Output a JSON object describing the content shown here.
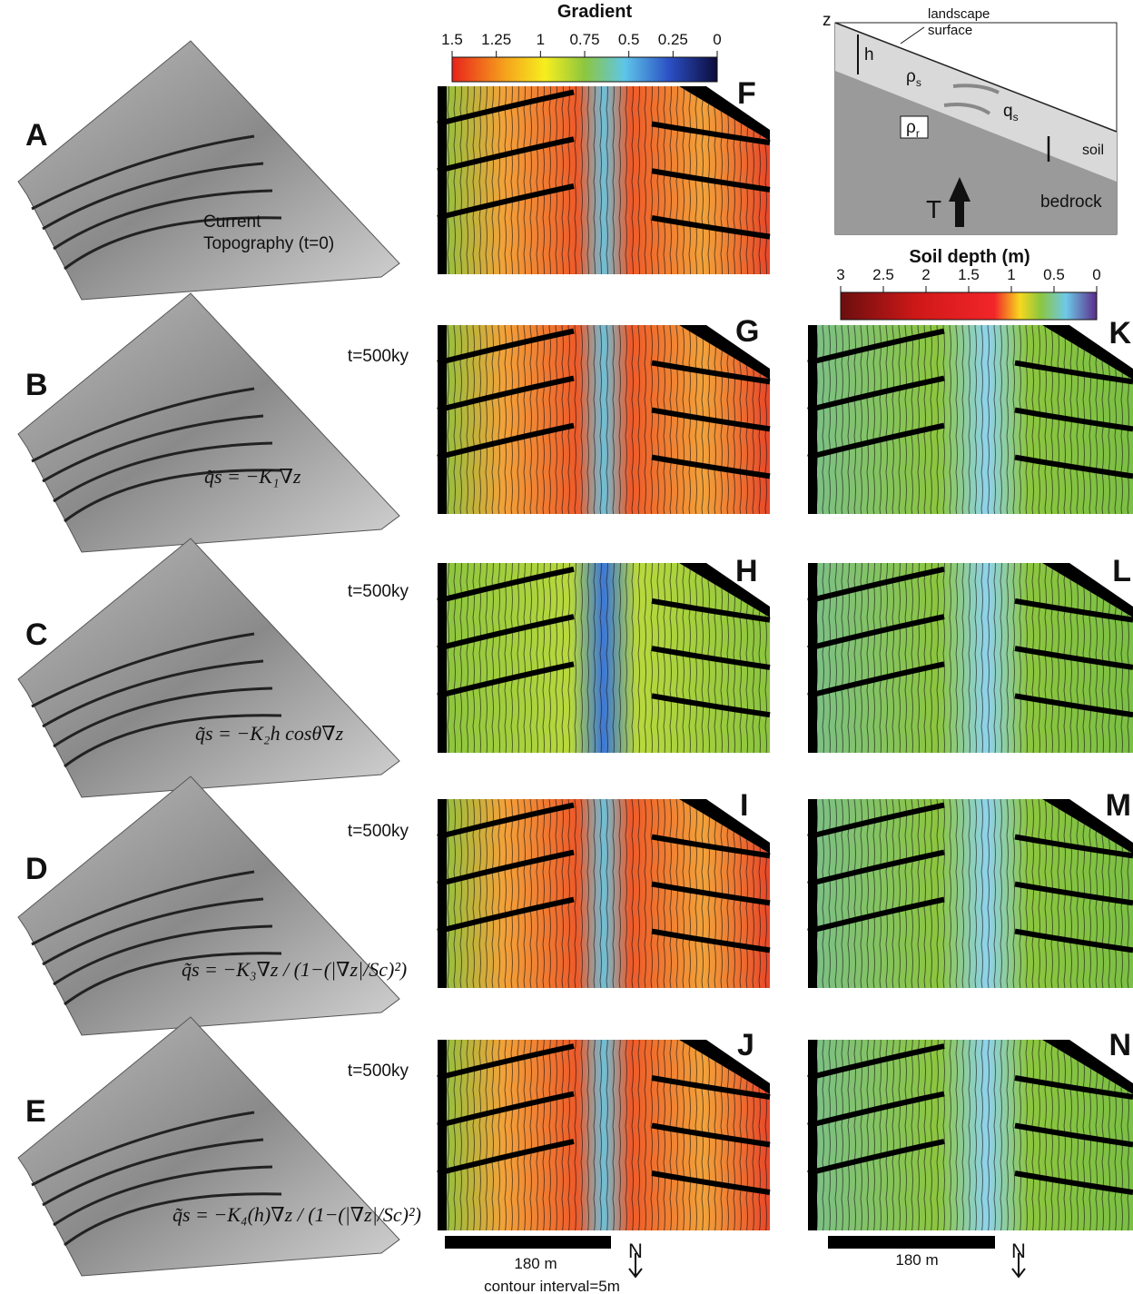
{
  "panels": {
    "A": "A",
    "B": "B",
    "C": "C",
    "D": "D",
    "E": "E",
    "F": "F",
    "G": "G",
    "H": "H",
    "I": "I",
    "J": "J",
    "K": "K",
    "L": "L",
    "M": "M",
    "N": "N"
  },
  "topography": {
    "caption": [
      "Current",
      "Topography (t=0)"
    ],
    "times": [
      "t=500ky",
      "t=500ky",
      "t=500ky",
      "t=500ky"
    ],
    "formulas": [
      "q̃s = −K₁∇z",
      "q̃s = −K₂h cosθ∇z",
      "q̃s = −K₃∇z / (1−(|∇z|/Sc)²)",
      "q̃s = −K₄(h)∇z / (1−(|∇z|/Sc)²)"
    ]
  },
  "colorbars": [
    {
      "title": "Gradient",
      "lim": [
        1.5,
        0
      ],
      "ticks": [
        1.5,
        1.25,
        1,
        0.75,
        0.5,
        0.25,
        0
      ]
    },
    {
      "title": "Soil depth (m)",
      "lim": [
        3,
        0
      ],
      "ticks": [
        3,
        2.5,
        2,
        1.5,
        1,
        0.5,
        0
      ]
    }
  ],
  "schematic": {
    "z": "z",
    "h": "h",
    "surface": [
      "landscape",
      "surface"
    ],
    "rho_s": {
      "symbol": "ρ",
      "sub": "s"
    },
    "q_s": {
      "symbol": "q",
      "sub": "s"
    },
    "rho_r": {
      "symbol": "ρ",
      "sub": "r"
    },
    "soil": "soil",
    "bedrock": "bedrock",
    "T": "T"
  },
  "scale_bars": [
    {
      "label": "180 m",
      "north": "N",
      "note": "contour interval=5m"
    },
    {
      "label": "180 m",
      "north": "N"
    }
  ]
}
